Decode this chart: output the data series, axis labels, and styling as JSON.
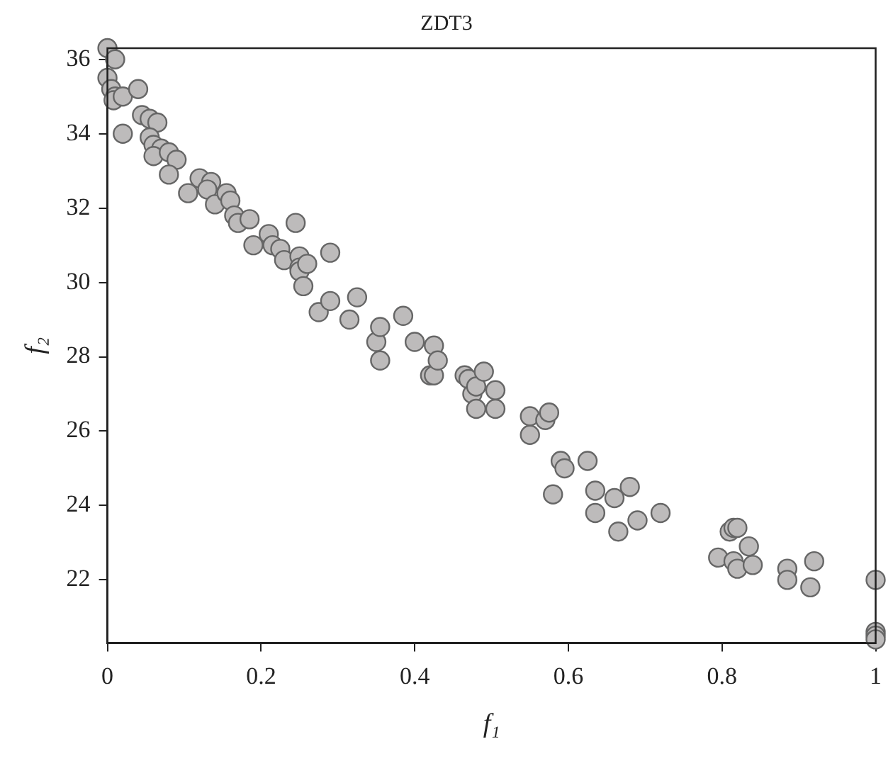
{
  "chart_data": {
    "type": "scatter",
    "title": "ZDT3",
    "xlabel": "f₁",
    "ylabel": "f₂",
    "xlim": [
      0,
      1
    ],
    "xticks": [
      0,
      0.2,
      0.4,
      0.6,
      0.8,
      1
    ],
    "ylim": [
      20.3,
      36.3
    ],
    "yticks": [
      22,
      24,
      26,
      28,
      30,
      32,
      34,
      36
    ],
    "grid": false,
    "legend": false,
    "marker": "circle",
    "series": [
      {
        "color": "#bdbbbb",
        "x": [
          0.0,
          0.01,
          0.0,
          0.005,
          0.01,
          0.008,
          0.02,
          0.04,
          0.02,
          0.045,
          0.055,
          0.065,
          0.055,
          0.06,
          0.07,
          0.06,
          0.08,
          0.09,
          0.08,
          0.105,
          0.12,
          0.135,
          0.13,
          0.14,
          0.155,
          0.16,
          0.165,
          0.17,
          0.185,
          0.19,
          0.21,
          0.215,
          0.225,
          0.245,
          0.23,
          0.25,
          0.25,
          0.25,
          0.26,
          0.255,
          0.29,
          0.275,
          0.29,
          0.315,
          0.325,
          0.35,
          0.355,
          0.355,
          0.385,
          0.4,
          0.42,
          0.425,
          0.425,
          0.43,
          0.465,
          0.47,
          0.475,
          0.48,
          0.49,
          0.48,
          0.505,
          0.505,
          0.55,
          0.55,
          0.57,
          0.575,
          0.58,
          0.59,
          0.595,
          0.625,
          0.635,
          0.635,
          0.66,
          0.665,
          0.68,
          0.69,
          0.72,
          0.795,
          0.81,
          0.815,
          0.82,
          0.815,
          0.82,
          0.835,
          0.84,
          0.885,
          0.885,
          0.915,
          0.92,
          1.0,
          1.0,
          1.0,
          1.0
        ],
        "values": [
          36.3,
          36.0,
          35.5,
          35.2,
          35.0,
          34.9,
          35.0,
          35.2,
          34.0,
          34.5,
          34.4,
          34.3,
          33.9,
          33.7,
          33.6,
          33.4,
          33.5,
          33.3,
          32.9,
          32.4,
          32.8,
          32.7,
          32.5,
          32.1,
          32.4,
          32.2,
          31.8,
          31.6,
          31.7,
          31.0,
          31.3,
          31.0,
          30.9,
          31.6,
          30.6,
          30.7,
          30.4,
          30.3,
          30.5,
          29.9,
          30.8,
          29.2,
          29.5,
          29.0,
          29.6,
          28.4,
          28.8,
          27.9,
          29.1,
          28.4,
          27.5,
          27.5,
          28.3,
          27.9,
          27.5,
          27.4,
          27.0,
          27.2,
          27.6,
          26.6,
          27.1,
          26.6,
          26.4,
          25.9,
          26.3,
          26.5,
          24.3,
          25.2,
          25.0,
          25.2,
          24.4,
          23.8,
          24.2,
          23.3,
          24.5,
          23.6,
          23.8,
          22.6,
          23.3,
          23.4,
          23.4,
          22.5,
          22.3,
          22.9,
          22.4,
          22.3,
          22.0,
          21.8,
          22.5,
          22.0,
          20.6,
          20.5,
          20.4
        ]
      }
    ]
  }
}
